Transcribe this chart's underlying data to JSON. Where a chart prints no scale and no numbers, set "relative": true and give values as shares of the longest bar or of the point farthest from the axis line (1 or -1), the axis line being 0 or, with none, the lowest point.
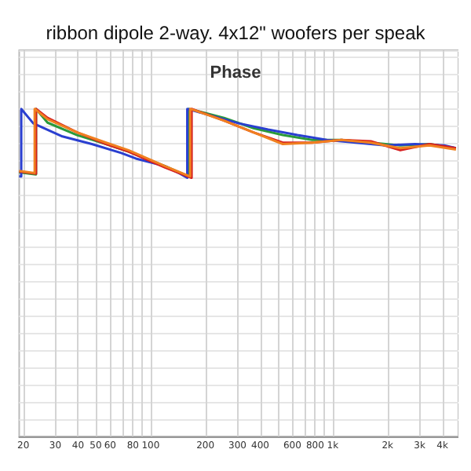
{
  "chart_data": {
    "type": "line",
    "title": "ribbon dipole 2-way. 4x12\" woofers per speak",
    "subtitle": "Phase",
    "relative": true,
    "log": "x",
    "grid": true,
    "marker": "none",
    "line_style": "solid",
    "xlim": [
      19,
      4900
    ],
    "xticks": [
      20,
      30,
      40,
      50,
      60,
      {
        "value": 70,
        "label": null
      },
      80,
      {
        "value": 90,
        "label": null
      },
      100,
      200,
      300,
      400,
      {
        "value": 500,
        "label": null
      },
      600,
      {
        "value": 700,
        "label": null
      },
      800,
      {
        "value": 900,
        "label": null
      },
      {
        "value": 1000,
        "label": "1k"
      },
      {
        "value": 2000,
        "label": "2k"
      },
      {
        "value": 3000,
        "label": "3k"
      },
      {
        "value": 4000,
        "label": "4k"
      }
    ],
    "series": [
      {
        "color": "#2a9a3a",
        "x": [
          19,
          23.5,
          23.5,
          27.2,
          39.5,
          57,
          75.7,
          120,
          162,
          162,
          253,
          367,
          532,
          771,
          1117,
          1620,
          2350,
          3400,
          4750
        ],
        "values": [
          0.08,
          0.05,
          1,
          0.8,
          0.62,
          0.49,
          0.38,
          0.17,
          0.02,
          1,
          0.87,
          0.72,
          0.62,
          0.55,
          0.55,
          0.51,
          0.47,
          0.49,
          0.43
        ]
      },
      {
        "color": "#2a3fd0",
        "x": [
          19,
          19.5,
          19.5,
          22.7,
          32.8,
          47.6,
          69,
          83,
          120,
          145,
          159,
          159,
          210,
          305,
          442,
          640,
          928,
          1345,
          1950,
          2830,
          4100,
          4750
        ],
        "values": [
          0.02,
          0.02,
          1,
          0.79,
          0.6,
          0.49,
          0.36,
          0.28,
          0.17,
          0.06,
          0,
          1,
          0.91,
          0.79,
          0.7,
          0.62,
          0.55,
          0.51,
          0.47,
          0.49,
          0.47,
          0.43
        ]
      },
      {
        "color": "#d62020",
        "x": [
          19,
          23.5,
          23.5,
          27.2,
          39.5,
          57,
          75.7,
          120,
          168,
          168,
          253,
          367,
          532,
          771,
          1117,
          1620,
          2350,
          3400,
          4750
        ],
        "values": [
          0.09,
          0.06,
          1,
          0.87,
          0.66,
          0.49,
          0.38,
          0.15,
          0,
          1,
          0.83,
          0.66,
          0.51,
          0.51,
          0.55,
          0.53,
          0.4,
          0.49,
          0.43
        ]
      },
      {
        "color": "#f08020",
        "x": [
          19,
          23.1,
          23.1,
          27.2,
          39.5,
          57,
          75.7,
          120,
          165,
          165,
          253,
          367,
          532,
          771,
          1117,
          1620,
          2350,
          3400,
          4750
        ],
        "values": [
          0.1,
          0.07,
          1,
          0.85,
          0.66,
          0.51,
          0.4,
          0.17,
          0.02,
          1,
          0.83,
          0.66,
          0.49,
          0.51,
          0.55,
          0.51,
          0.43,
          0.47,
          0.41
        ]
      }
    ]
  }
}
